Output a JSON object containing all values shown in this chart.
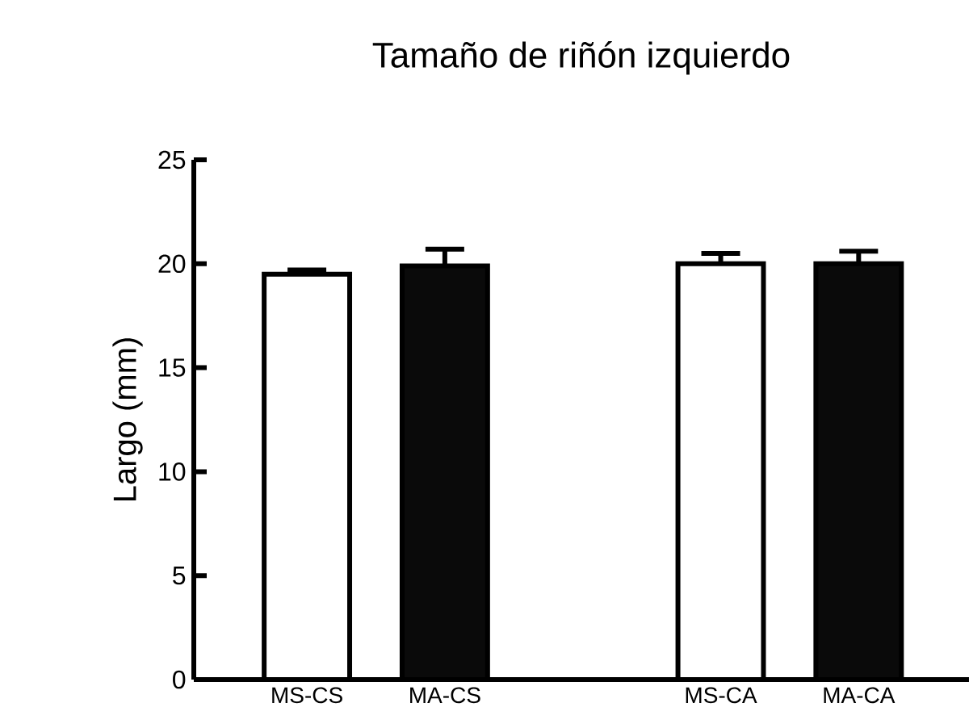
{
  "chart_data": {
    "type": "bar",
    "title": "Tamaño de riñón izquierdo",
    "ylabel": "Largo (mm)",
    "categories": [
      "MS-CS",
      "MA-CS",
      null,
      "MS-CA",
      "MA-CA"
    ],
    "values": [
      19.5,
      19.9,
      null,
      20.0,
      20.0
    ],
    "colors": [
      "#ffffff",
      "#0a0a0a",
      null,
      "#ffffff",
      "#0a0a0a"
    ],
    "errors": [
      [
        19.5,
        19.7
      ],
      [
        19.9,
        20.7
      ],
      null,
      [
        20.0,
        20.5
      ],
      [
        20.0,
        20.6
      ]
    ],
    "ylim": [
      0,
      25
    ],
    "yticks": [
      0,
      5,
      10,
      15,
      20,
      25
    ]
  }
}
